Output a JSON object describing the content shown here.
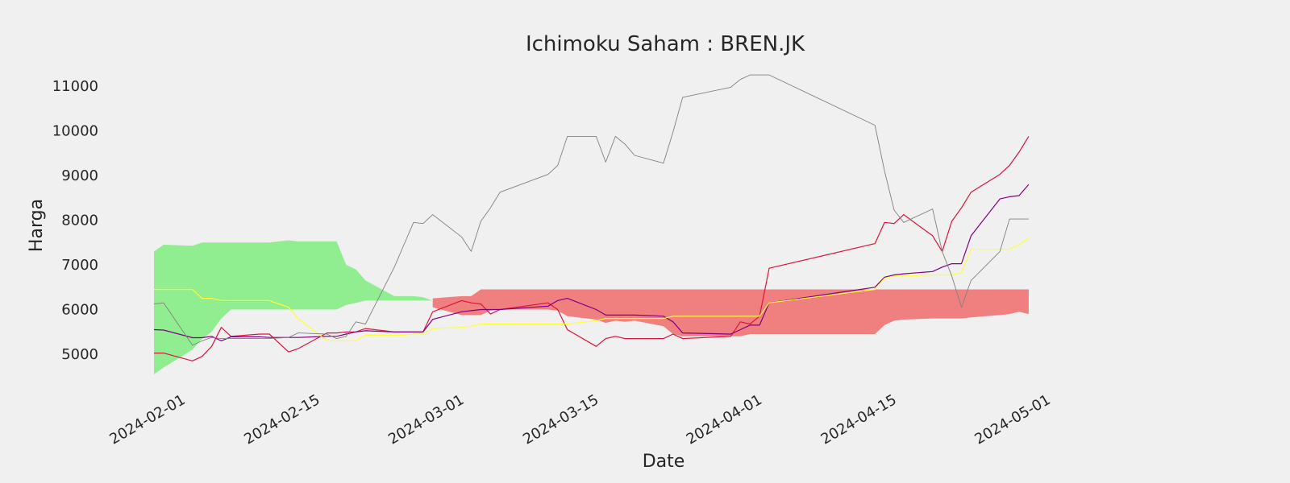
{
  "chart_data": {
    "type": "line",
    "title": "Ichimoku Saham : BREN.JK",
    "xlabel": "Date",
    "ylabel": "Harga",
    "xlim": [
      "2024-02-01",
      "2024-05-01"
    ],
    "ylim": [
      4200,
      11500
    ],
    "grid": false,
    "legend": "none",
    "x_ticks": [
      "2024-02-01",
      "2024-02-15",
      "2024-03-01",
      "2024-03-15",
      "2024-04-01",
      "2024-04-15",
      "2024-05-01"
    ],
    "y_ticks": [
      5000,
      6000,
      7000,
      8000,
      9000,
      10000,
      11000
    ],
    "colors": {
      "background": "#f0f0f0",
      "close": "#dc143c",
      "tenkan": "#800080",
      "kijun": "#ffff33",
      "chikou": "#808080",
      "cloud_bull": "#90ee90",
      "cloud_bear": "#f08080"
    },
    "series": [
      {
        "key": "close",
        "x": [
          "2024-02-01",
          "2024-02-02",
          "2024-02-05",
          "2024-02-06",
          "2024-02-07",
          "2024-02-08",
          "2024-02-09",
          "2024-02-12",
          "2024-02-13",
          "2024-02-15",
          "2024-02-16",
          "2024-02-19",
          "2024-02-20",
          "2024-02-21",
          "2024-02-22",
          "2024-02-23",
          "2024-02-26",
          "2024-02-27",
          "2024-02-28",
          "2024-02-29",
          "2024-03-01",
          "2024-03-04",
          "2024-03-05",
          "2024-03-06",
          "2024-03-07",
          "2024-03-08",
          "2024-03-13",
          "2024-03-14",
          "2024-03-15",
          "2024-03-18",
          "2024-03-19",
          "2024-03-20",
          "2024-03-21",
          "2024-03-22",
          "2024-03-25",
          "2024-03-26",
          "2024-03-27",
          "2024-04-01",
          "2024-04-02",
          "2024-04-03",
          "2024-04-04",
          "2024-04-05",
          "2024-04-16",
          "2024-04-17",
          "2024-04-18",
          "2024-04-19",
          "2024-04-22",
          "2024-04-23",
          "2024-04-24",
          "2024-04-25",
          "2024-04-26",
          "2024-04-29",
          "2024-04-30",
          "2024-05-01",
          "2024-05-02"
        ],
        "y": [
          5025,
          5025,
          4850,
          4950,
          5175,
          5600,
          5400,
          5450,
          5450,
          5050,
          5125,
          5475,
          5475,
          5500,
          5500,
          5575,
          5500,
          5500,
          5500,
          5500,
          5950,
          6200,
          6150,
          6125,
          5900,
          6000,
          6150,
          6000,
          5550,
          5175,
          5350,
          5400,
          5350,
          5350,
          5350,
          5450,
          5350,
          5400,
          5725,
          5675,
          5850,
          6925,
          7475,
          7950,
          7925,
          8125,
          7650,
          7300,
          7975,
          8275,
          8625,
          9025,
          9225,
          9525,
          9875
        ]
      },
      {
        "key": "tenkan",
        "x": [
          "2024-02-01",
          "2024-02-02",
          "2024-02-05",
          "2024-02-06",
          "2024-02-07",
          "2024-02-08",
          "2024-02-09",
          "2024-02-12",
          "2024-02-13",
          "2024-02-15",
          "2024-02-16",
          "2024-02-19",
          "2024-02-20",
          "2024-02-21",
          "2024-02-22",
          "2024-02-23",
          "2024-02-26",
          "2024-02-27",
          "2024-02-28",
          "2024-02-29",
          "2024-03-01",
          "2024-03-04",
          "2024-03-05",
          "2024-03-06",
          "2024-03-07",
          "2024-03-08",
          "2024-03-13",
          "2024-03-14",
          "2024-03-15",
          "2024-03-18",
          "2024-03-19",
          "2024-03-20",
          "2024-03-21",
          "2024-03-22",
          "2024-03-25",
          "2024-03-26",
          "2024-03-27",
          "2024-04-01",
          "2024-04-02",
          "2024-04-03",
          "2024-04-04",
          "2024-04-05",
          "2024-04-16",
          "2024-04-17",
          "2024-04-18",
          "2024-04-19",
          "2024-04-22",
          "2024-04-23",
          "2024-04-24",
          "2024-04-25",
          "2024-04-26",
          "2024-04-29",
          "2024-04-30",
          "2024-05-01",
          "2024-05-02"
        ],
        "y": [
          5550,
          5540,
          5370,
          5370,
          5400,
          5300,
          5390,
          5390,
          5375,
          5375,
          5375,
          5400,
          5400,
          5450,
          5500,
          5525,
          5500,
          5500,
          5500,
          5500,
          5780,
          5950,
          5975,
          6000,
          6000,
          6000,
          6075,
          6200,
          6250,
          6000,
          5875,
          5875,
          5875,
          5875,
          5850,
          5725,
          5475,
          5450,
          5550,
          5650,
          5650,
          6150,
          6500,
          6725,
          6775,
          6800,
          6850,
          6950,
          7025,
          7025,
          7650,
          8475,
          8525,
          8550,
          8800
        ]
      },
      {
        "key": "kijun",
        "x": [
          "2024-02-01",
          "2024-02-02",
          "2024-02-05",
          "2024-02-06",
          "2024-02-07",
          "2024-02-08",
          "2024-02-09",
          "2024-02-12",
          "2024-02-13",
          "2024-02-15",
          "2024-02-16",
          "2024-02-19",
          "2024-02-20",
          "2024-02-21",
          "2024-02-22",
          "2024-02-23",
          "2024-02-26",
          "2024-02-27",
          "2024-02-28",
          "2024-02-29",
          "2024-03-01",
          "2024-03-04",
          "2024-03-05",
          "2024-03-06",
          "2024-03-07",
          "2024-03-08",
          "2024-03-13",
          "2024-03-14",
          "2024-03-15",
          "2024-03-18",
          "2024-03-19",
          "2024-03-20",
          "2024-03-21",
          "2024-03-22",
          "2024-03-25",
          "2024-03-26",
          "2024-03-27",
          "2024-04-01",
          "2024-04-02",
          "2024-04-03",
          "2024-04-04",
          "2024-04-05",
          "2024-04-16",
          "2024-04-17",
          "2024-04-18",
          "2024-04-19",
          "2024-04-22",
          "2024-04-23",
          "2024-04-24",
          "2024-04-25",
          "2024-04-26",
          "2024-04-29",
          "2024-04-30",
          "2024-05-01",
          "2024-05-02"
        ],
        "y": [
          6450,
          6450,
          6450,
          6250,
          6250,
          6200,
          6200,
          6200,
          6200,
          6050,
          5800,
          5300,
          5300,
          5300,
          5300,
          5425,
          5425,
          5425,
          5450,
          5450,
          5575,
          5600,
          5625,
          5675,
          5675,
          5675,
          5675,
          5675,
          5675,
          5750,
          5800,
          5800,
          5800,
          5800,
          5800,
          5850,
          5850,
          5850,
          5850,
          5850,
          5850,
          6150,
          6450,
          6700,
          6750,
          6750,
          6775,
          6775,
          6775,
          6825,
          7350,
          7350,
          7350,
          7450,
          7600
        ]
      },
      {
        "key": "chikou",
        "x": [
          "2024-02-01",
          "2024-02-02",
          "2024-02-05",
          "2024-02-06",
          "2024-02-07",
          "2024-02-08",
          "2024-02-09",
          "2024-02-12",
          "2024-02-13",
          "2024-02-15",
          "2024-02-16",
          "2024-02-19",
          "2024-02-20",
          "2024-02-21",
          "2024-02-22",
          "2024-02-23",
          "2024-02-26",
          "2024-02-27",
          "2024-02-28",
          "2024-02-29",
          "2024-03-01",
          "2024-03-04",
          "2024-03-05",
          "2024-03-06",
          "2024-03-07",
          "2024-03-08",
          "2024-03-13",
          "2024-03-14",
          "2024-03-15",
          "2024-03-18",
          "2024-03-19",
          "2024-03-20",
          "2024-03-21",
          "2024-03-22",
          "2024-03-25",
          "2024-03-26",
          "2024-03-27",
          "2024-04-01",
          "2024-04-02",
          "2024-04-03",
          "2024-04-04",
          "2024-04-05",
          "2024-04-16",
          "2024-04-17",
          "2024-04-18",
          "2024-04-19",
          "2024-04-22",
          "2024-04-23",
          "2024-04-24",
          "2024-04-25",
          "2024-04-26",
          "2024-04-29",
          "2024-04-30",
          "2024-05-01",
          "2024-05-02"
        ],
        "y": [
          6125,
          6150,
          5200,
          5300,
          5375,
          5350,
          5350,
          5350,
          5350,
          5375,
          5475,
          5450,
          5350,
          5400,
          5725,
          5675,
          6950,
          7450,
          7950,
          7925,
          8125,
          7625,
          7300,
          7975,
          8275,
          8625,
          9025,
          9225,
          9875,
          9875,
          9300,
          9875,
          9700,
          9450,
          9275,
          9975,
          10750,
          10975,
          11150,
          11250,
          11250,
          11250,
          10125,
          9100,
          8225,
          7950,
          8250,
          7300,
          6750,
          6050,
          6650,
          7300,
          8025,
          8025,
          8025
        ]
      }
    ],
    "cloud": [
      {
        "color_key": "cloud_bull",
        "x": [
          "2024-02-01",
          "2024-02-02",
          "2024-02-05",
          "2024-02-06",
          "2024-02-07",
          "2024-02-08",
          "2024-02-09",
          "2024-02-12",
          "2024-02-13",
          "2024-02-15",
          "2024-02-16",
          "2024-02-19",
          "2024-02-20",
          "2024-02-21",
          "2024-02-22",
          "2024-02-23",
          "2024-02-26",
          "2024-02-27",
          "2024-02-28",
          "2024-02-29",
          "2024-03-01"
        ],
        "upper": [
          7300,
          7450,
          7425,
          7500,
          7500,
          7500,
          7500,
          7500,
          7500,
          7550,
          7525,
          7525,
          7525,
          7000,
          6900,
          6650,
          6300,
          6300,
          6300,
          6275,
          6200
        ],
        "lower": [
          4550,
          4700,
          5100,
          5350,
          5500,
          5800,
          6000,
          6000,
          6000,
          6000,
          6000,
          6000,
          6000,
          6100,
          6150,
          6200,
          6200,
          6200,
          6200,
          6200,
          6200
        ]
      },
      {
        "color_key": "cloud_bear",
        "x": [
          "2024-03-01",
          "2024-03-04",
          "2024-03-05",
          "2024-03-06",
          "2024-03-07",
          "2024-03-08",
          "2024-03-13",
          "2024-03-14",
          "2024-03-15",
          "2024-03-18",
          "2024-03-19",
          "2024-03-20",
          "2024-03-21",
          "2024-03-22",
          "2024-03-25",
          "2024-03-26",
          "2024-03-27",
          "2024-04-01",
          "2024-04-02",
          "2024-04-03",
          "2024-04-04",
          "2024-04-05",
          "2024-04-16",
          "2024-04-17",
          "2024-04-18",
          "2024-04-19",
          "2024-04-22",
          "2024-04-23",
          "2024-04-24",
          "2024-04-25",
          "2024-04-26",
          "2024-04-29",
          "2024-04-30",
          "2024-05-01",
          "2024-05-02"
        ],
        "upper": [
          6250,
          6300,
          6300,
          6450,
          6450,
          6450,
          6450,
          6450,
          6450,
          6450,
          6450,
          6450,
          6450,
          6450,
          6450,
          6450,
          6450,
          6450,
          6450,
          6450,
          6450,
          6450,
          6450,
          6450,
          6450,
          6450,
          6450,
          6450,
          6450,
          6450,
          6450,
          6450,
          6450,
          6450,
          6450
        ],
        "lower": [
          6050,
          5875,
          5875,
          5875,
          5975,
          6000,
          6000,
          5975,
          5850,
          5775,
          5700,
          5750,
          5725,
          5750,
          5625,
          5450,
          5400,
          5400,
          5400,
          5450,
          5450,
          5450,
          5450,
          5650,
          5750,
          5775,
          5800,
          5800,
          5800,
          5800,
          5825,
          5875,
          5900,
          5950,
          5900
        ]
      }
    ]
  }
}
